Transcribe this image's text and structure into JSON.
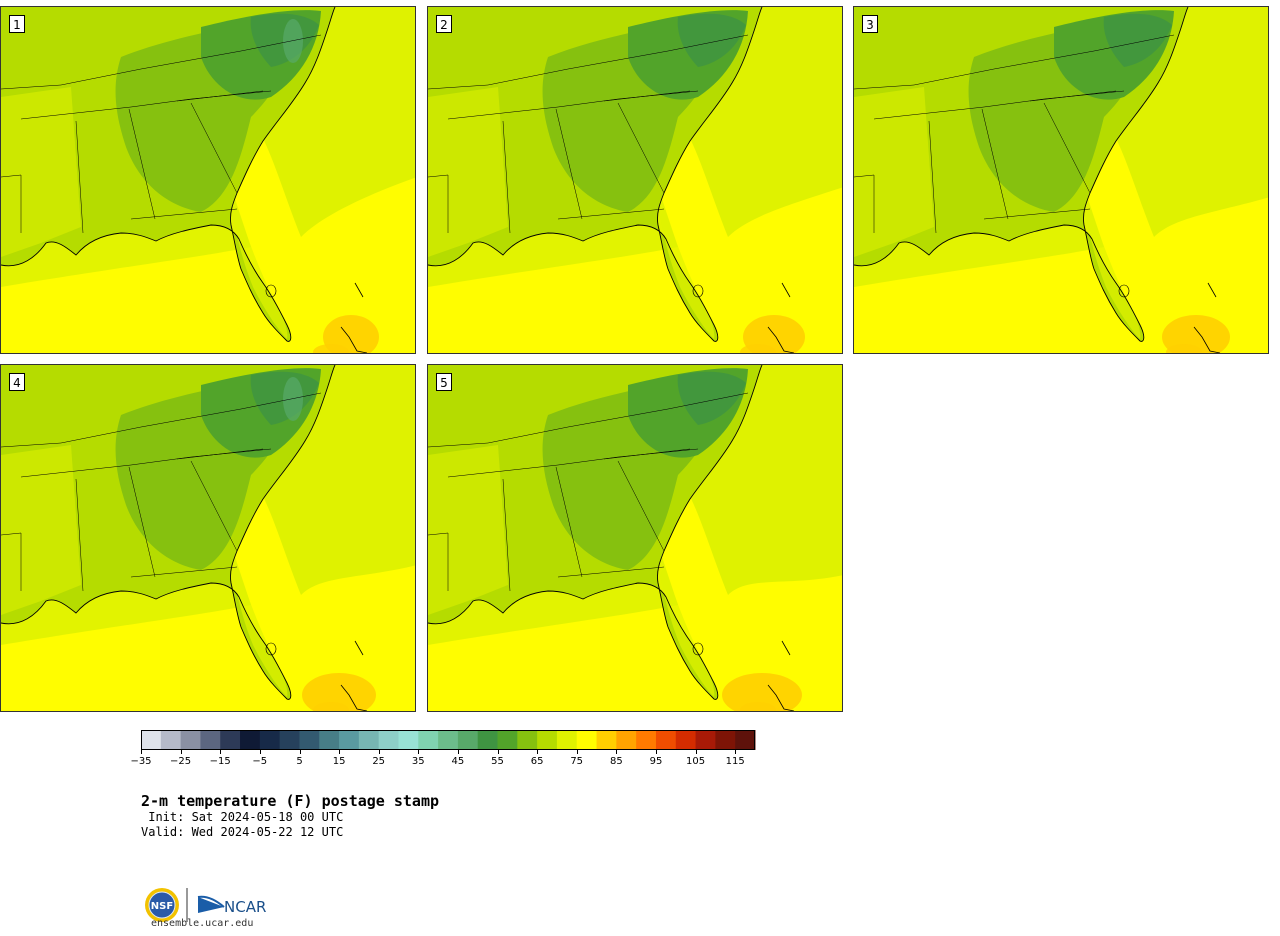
{
  "figure": {
    "title": "2-m temperature (F) postage stamp",
    "init": " Init: Sat 2024-05-18 00 UTC",
    "valid": "Valid: Wed 2024-05-22 12 UTC",
    "url": "ensemble.ucar.edu"
  },
  "panels": [
    {
      "label": "1"
    },
    {
      "label": "2"
    },
    {
      "label": "3"
    },
    {
      "label": "4"
    },
    {
      "label": "5"
    }
  ],
  "colorbar": {
    "tick_labels": [
      "−35",
      "−25",
      "−15",
      "−5",
      "5",
      "15",
      "25",
      "35",
      "45",
      "55",
      "65",
      "75",
      "85",
      "95",
      "105",
      "115"
    ],
    "tick_values": [
      -35,
      -25,
      -15,
      -5,
      5,
      15,
      25,
      35,
      45,
      55,
      65,
      75,
      85,
      95,
      105,
      115
    ],
    "range": [
      -35,
      120
    ],
    "step": 5,
    "colors": [
      "#dfe3ea",
      "#b5bac9",
      "#8a90a3",
      "#5c6680",
      "#2d3a57",
      "#0f1a35",
      "#172a48",
      "#26415c",
      "#335a70",
      "#477e87",
      "#5a9aa0",
      "#77b6b3",
      "#8ecfc8",
      "#98e2d5",
      "#80d3b1",
      "#6cbd8b",
      "#58a96a",
      "#3f9442",
      "#52a42a",
      "#86c10f",
      "#b5dc00",
      "#dff200",
      "#fffd00",
      "#ffcf00",
      "#ffa400",
      "#ff7a00",
      "#f04d00",
      "#d42c00",
      "#a81a07",
      "#7e1406",
      "#5e120b"
    ]
  },
  "logos": {
    "left": "NSF",
    "right": "NCAR"
  }
}
